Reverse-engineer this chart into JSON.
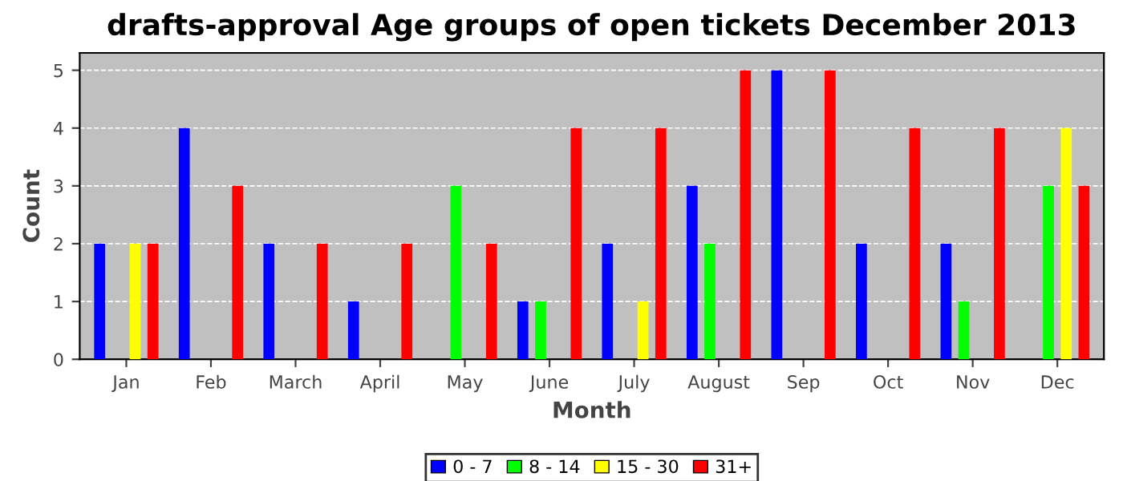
{
  "chart_data": {
    "type": "bar",
    "title": "drafts-approval Age groups of open tickets December 2013",
    "xlabel": "Month",
    "ylabel": "Count",
    "categories": [
      "Jan",
      "Feb",
      "March",
      "April",
      "May",
      "June",
      "July",
      "August",
      "Sep",
      "Oct",
      "Nov",
      "Dec"
    ],
    "series": [
      {
        "name": "0 - 7",
        "color": "#0000ff",
        "values": [
          2,
          4,
          2,
          1,
          0,
          1,
          2,
          3,
          5,
          2,
          2,
          0
        ]
      },
      {
        "name": "8 - 14",
        "color": "#00ff00",
        "values": [
          0,
          0,
          0,
          0,
          3,
          1,
          0,
          2,
          0,
          0,
          1,
          3
        ]
      },
      {
        "name": "15 - 30",
        "color": "#ffff00",
        "values": [
          2,
          0,
          0,
          0,
          0,
          0,
          1,
          0,
          0,
          0,
          0,
          4
        ]
      },
      {
        "name": "31+",
        "color": "#ff0000",
        "values": [
          2,
          3,
          2,
          2,
          2,
          4,
          4,
          5,
          5,
          4,
          4,
          3
        ]
      }
    ],
    "ylim": [
      0,
      5.3
    ],
    "yticks": [
      0,
      1,
      2,
      3,
      4,
      5
    ],
    "grid": "y",
    "legend": "bottom"
  }
}
